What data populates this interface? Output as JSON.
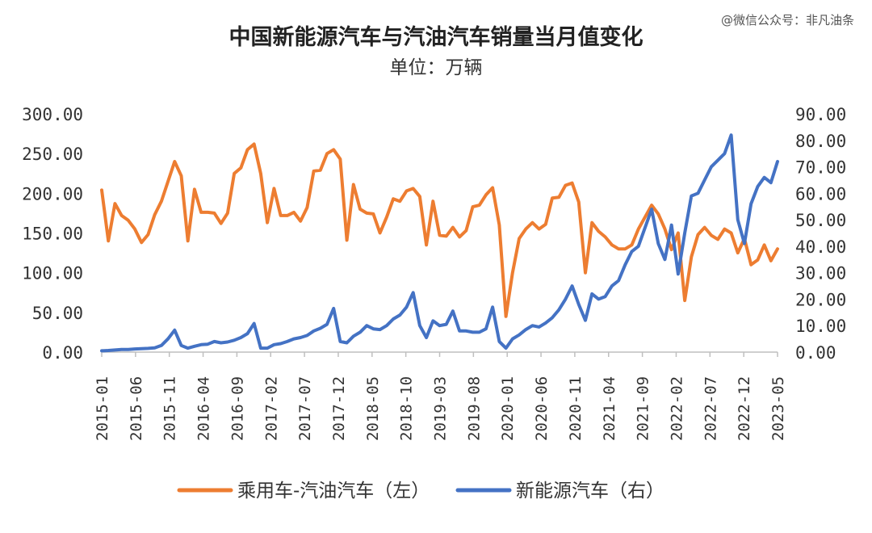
{
  "watermark": "@微信公众号：非凡油条",
  "chart_data": {
    "type": "line",
    "title": "中国新能源汽车与汽油汽车销量当月值变化",
    "subtitle": "单位：万辆",
    "grid": false,
    "legend_position": "bottom",
    "y_left": {
      "min": 0,
      "max": 300,
      "ticks": [
        "0.00",
        "50.00",
        "100.00",
        "150.00",
        "200.00",
        "250.00",
        "300.00"
      ]
    },
    "y_right": {
      "min": 0,
      "max": 90,
      "ticks": [
        "0.00",
        "10.00",
        "20.00",
        "30.00",
        "40.00",
        "50.00",
        "60.00",
        "70.00",
        "80.00",
        "90.00"
      ]
    },
    "x_start": "2015-01",
    "x_end": "2023-05",
    "x_tick_labels": [
      "2015-01",
      "2015-06",
      "2015-11",
      "2016-04",
      "2016-09",
      "2017-02",
      "2017-07",
      "2017-12",
      "2018-05",
      "2018-10",
      "2019-03",
      "2019-08",
      "2020-01",
      "2020-06",
      "2020-11",
      "2021-04",
      "2021-09",
      "2022-02",
      "2022-07",
      "2022-12",
      "2023-05"
    ],
    "series": [
      {
        "name": "乘用车-汽油汽车（左）",
        "axis": "left",
        "color": "#ED7D31",
        "values": [
          204,
          140,
          187,
          172,
          166,
          155,
          138,
          148,
          173,
          190,
          215,
          240,
          222,
          140,
          205,
          176,
          176,
          175,
          162,
          175,
          225,
          232,
          255,
          262,
          225,
          163,
          206,
          172,
          172,
          176,
          165,
          182,
          228,
          229,
          250,
          255,
          243,
          141,
          211,
          180,
          175,
          174,
          150,
          170,
          193,
          190,
          203,
          206,
          196,
          135,
          190,
          147,
          146,
          157,
          145,
          153,
          183,
          185,
          198,
          207,
          160,
          45,
          100,
          143,
          155,
          163,
          155,
          161,
          194,
          195,
          210,
          213,
          189,
          100,
          163,
          152,
          145,
          135,
          130,
          130,
          135,
          155,
          170,
          185,
          174,
          155,
          129,
          150,
          65,
          120,
          148,
          157,
          147,
          142,
          155,
          150,
          125,
          143,
          110,
          116,
          135,
          115,
          130
        ]
      },
      {
        "name": "新能源汽车（右）",
        "axis": "right",
        "color": "#4472C4",
        "values": [
          0.5,
          0.6,
          0.8,
          1.0,
          1.0,
          1.2,
          1.3,
          1.4,
          1.6,
          2.5,
          5.0,
          8.3,
          2.5,
          1.5,
          2.2,
          2.8,
          3.0,
          4.0,
          3.5,
          3.8,
          4.5,
          5.5,
          7.0,
          10.8,
          1.5,
          1.5,
          2.8,
          3.2,
          4.0,
          5.0,
          5.5,
          6.3,
          8.0,
          9.0,
          10.5,
          16.5,
          4.0,
          3.5,
          6.0,
          7.5,
          10.0,
          8.8,
          8.5,
          10.0,
          12.5,
          14.0,
          17.0,
          22.5,
          10.0,
          5.5,
          11.8,
          10.0,
          10.5,
          15.5,
          8.0,
          8.0,
          7.5,
          7.5,
          8.8,
          17.0,
          4.0,
          1.5,
          5.0,
          6.5,
          8.5,
          10.0,
          9.5,
          11.0,
          13.0,
          16.0,
          20.0,
          25.0,
          18.0,
          12.0,
          22.0,
          20.0,
          21.0,
          25.0,
          27.0,
          33.0,
          38.0,
          40.0,
          47.0,
          54.0,
          41.0,
          35.0,
          48.0,
          29.5,
          45.0,
          59.0,
          60.0,
          65.0,
          70.0,
          72.5,
          75.0,
          82.0,
          50.0,
          41.0,
          56.0,
          62.5,
          66.0,
          64.0,
          72.0
        ]
      }
    ]
  }
}
